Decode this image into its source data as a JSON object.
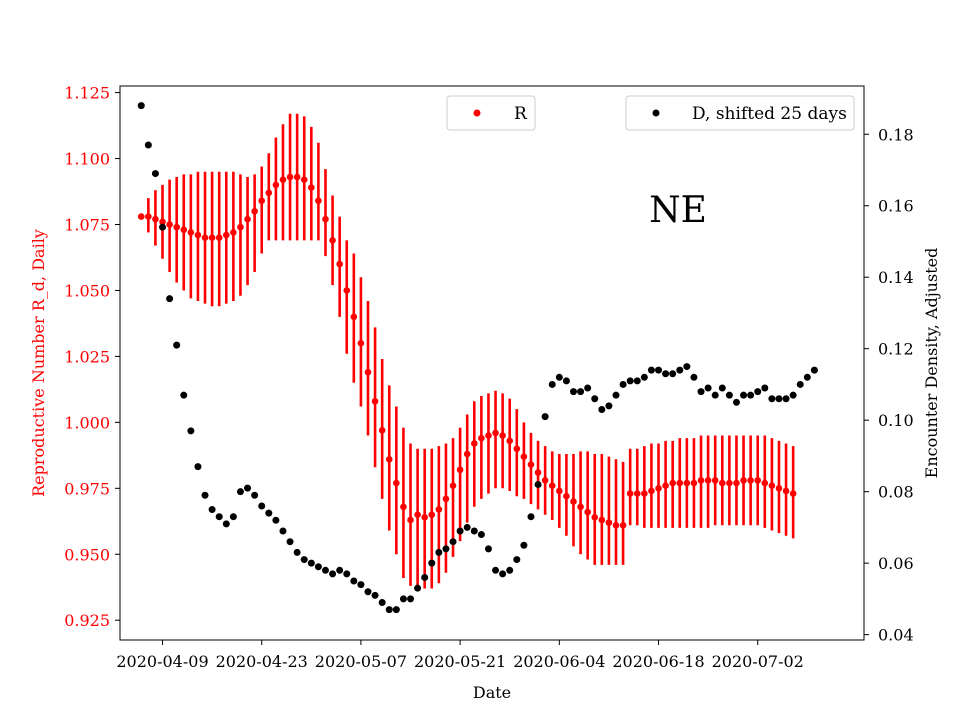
{
  "chart_data": {
    "type": "scatter",
    "title": "",
    "annotation": "NE",
    "xlabel": "Date",
    "ylabel_left": "Reproductive Number R_d, Daily",
    "ylabel_right": "Encounter Density, Adjusted",
    "x_start_date": "2020-04-06",
    "xlim_days": [
      -3,
      102
    ],
    "x_tick_days": [
      3,
      17,
      31,
      45,
      59,
      73,
      87
    ],
    "x_tick_labels": [
      "2020-04-09",
      "2020-04-23",
      "2020-05-07",
      "2020-05-21",
      "2020-06-04",
      "2020-06-18",
      "2020-07-02"
    ],
    "ylim_left": [
      0.9175,
      1.1275
    ],
    "y_ticks_left": [
      0.925,
      0.95,
      0.975,
      1.0,
      1.025,
      1.05,
      1.075,
      1.1,
      1.125
    ],
    "y_tick_labels_left": [
      "0.925",
      "0.950",
      "0.975",
      "1.000",
      "1.025",
      "1.050",
      "1.075",
      "1.100",
      "1.125"
    ],
    "ylim_right": [
      0.0385,
      0.1935
    ],
    "y_ticks_right": [
      0.04,
      0.06,
      0.08,
      0.1,
      0.12,
      0.14,
      0.16,
      0.18
    ],
    "y_tick_labels_right": [
      "0.04",
      "0.06",
      "0.08",
      "0.10",
      "0.12",
      "0.14",
      "0.16",
      "0.18"
    ],
    "colors": {
      "R": "#ff0000",
      "D": "#000000",
      "axis_left": "#ff0000",
      "axis_right": "#000000"
    },
    "series": [
      {
        "name": "R",
        "legend_label": "R",
        "axis": "left",
        "color": "#ff0000",
        "x_start_day": 0,
        "values": [
          1.078,
          1.078,
          1.077,
          1.076,
          1.075,
          1.074,
          1.073,
          1.072,
          1.071,
          1.07,
          1.07,
          1.07,
          1.071,
          1.072,
          1.074,
          1.077,
          1.08,
          1.084,
          1.087,
          1.09,
          1.092,
          1.093,
          1.093,
          1.092,
          1.089,
          1.084,
          1.077,
          1.069,
          1.06,
          1.05,
          1.04,
          1.03,
          1.019,
          1.008,
          0.997,
          0.986,
          0.977,
          0.968,
          0.963,
          0.965,
          0.964,
          0.965,
          0.967,
          0.971,
          0.976,
          0.982,
          0.988,
          0.992,
          0.994,
          0.995,
          0.996,
          0.995,
          0.993,
          0.99,
          0.987,
          0.984,
          0.981,
          0.978,
          0.976,
          0.974,
          0.972,
          0.97,
          0.968,
          0.966,
          0.964,
          0.963,
          0.962,
          0.961,
          0.961,
          0.973,
          0.973,
          0.973,
          0.974,
          0.975,
          0.976,
          0.977,
          0.977,
          0.977,
          0.977,
          0.978,
          0.978,
          0.978,
          0.977,
          0.977,
          0.977,
          0.978,
          0.978,
          0.978,
          0.977,
          0.976,
          0.975,
          0.974,
          0.973
        ],
        "err_low": [
          1.078,
          1.072,
          1.067,
          1.062,
          1.057,
          1.053,
          1.05,
          1.047,
          1.046,
          1.045,
          1.044,
          1.044,
          1.045,
          1.046,
          1.048,
          1.052,
          1.057,
          1.064,
          1.069,
          1.069,
          1.069,
          1.069,
          1.069,
          1.069,
          1.069,
          1.069,
          1.063,
          1.052,
          1.04,
          1.026,
          1.015,
          1.006,
          0.995,
          0.983,
          0.971,
          0.959,
          0.95,
          0.941,
          0.938,
          0.938,
          0.937,
          0.937,
          0.939,
          0.943,
          0.949,
          0.955,
          0.962,
          0.968,
          0.971,
          0.973,
          0.975,
          0.975,
          0.974,
          0.972,
          0.971,
          0.969,
          0.967,
          0.965,
          0.963,
          0.96,
          0.957,
          0.953,
          0.95,
          0.948,
          0.946,
          0.946,
          0.946,
          0.946,
          0.946,
          0.961,
          0.961,
          0.96,
          0.96,
          0.96,
          0.96,
          0.96,
          0.96,
          0.96,
          0.96,
          0.96,
          0.96,
          0.961,
          0.961,
          0.961,
          0.961,
          0.961,
          0.961,
          0.961,
          0.96,
          0.959,
          0.958,
          0.957,
          0.956
        ],
        "err_high": [
          1.078,
          1.085,
          1.088,
          1.09,
          1.092,
          1.093,
          1.094,
          1.094,
          1.095,
          1.095,
          1.095,
          1.095,
          1.095,
          1.095,
          1.094,
          1.093,
          1.094,
          1.097,
          1.102,
          1.108,
          1.113,
          1.117,
          1.117,
          1.116,
          1.112,
          1.106,
          1.096,
          1.086,
          1.078,
          1.069,
          1.064,
          1.055,
          1.046,
          1.036,
          1.024,
          1.014,
          1.006,
          0.998,
          0.992,
          0.99,
          0.99,
          0.99,
          0.991,
          0.992,
          0.994,
          0.998,
          1.003,
          1.008,
          1.01,
          1.011,
          1.012,
          1.011,
          1.009,
          1.005,
          1.0,
          0.996,
          0.993,
          0.991,
          0.989,
          0.988,
          0.988,
          0.988,
          0.989,
          0.989,
          0.988,
          0.988,
          0.987,
          0.986,
          0.985,
          0.99,
          0.99,
          0.991,
          0.992,
          0.992,
          0.993,
          0.993,
          0.994,
          0.994,
          0.994,
          0.995,
          0.995,
          0.995,
          0.995,
          0.995,
          0.995,
          0.995,
          0.995,
          0.995,
          0.995,
          0.994,
          0.993,
          0.992,
          0.991
        ]
      },
      {
        "name": "D",
        "legend_label": "D, shifted 25 days",
        "axis": "right",
        "color": "#000000",
        "x_start_day": 0,
        "values": [
          0.188,
          0.177,
          0.169,
          0.154,
          0.134,
          0.121,
          0.107,
          0.097,
          0.087,
          0.079,
          0.075,
          0.073,
          0.071,
          0.073,
          0.08,
          0.081,
          0.079,
          0.076,
          0.074,
          0.072,
          0.069,
          0.066,
          0.063,
          0.061,
          0.06,
          0.059,
          0.058,
          0.057,
          0.058,
          0.057,
          0.055,
          0.054,
          0.052,
          0.051,
          0.049,
          0.047,
          0.047,
          0.05,
          0.05,
          0.053,
          0.056,
          0.06,
          0.063,
          0.064,
          0.066,
          0.069,
          0.07,
          0.069,
          0.068,
          0.064,
          0.058,
          0.057,
          0.058,
          0.061,
          0.065,
          0.073,
          0.082,
          0.101,
          0.11,
          0.112,
          0.111,
          0.108,
          0.108,
          0.109,
          0.106,
          0.103,
          0.104,
          0.107,
          0.11,
          0.111,
          0.111,
          0.112,
          0.114,
          0.114,
          0.113,
          0.113,
          0.114,
          0.115,
          0.112,
          0.108,
          0.109,
          0.107,
          0.109,
          0.107,
          0.105,
          0.107,
          0.107,
          0.108,
          0.109,
          0.106,
          0.106,
          0.106,
          0.107,
          0.11,
          0.112,
          0.114
        ]
      }
    ],
    "legend": [
      {
        "series": "R",
        "label": "R",
        "placement": "top-center"
      },
      {
        "series": "D",
        "label": "D, shifted 25 days",
        "placement": "top-right"
      }
    ],
    "grid": false
  }
}
